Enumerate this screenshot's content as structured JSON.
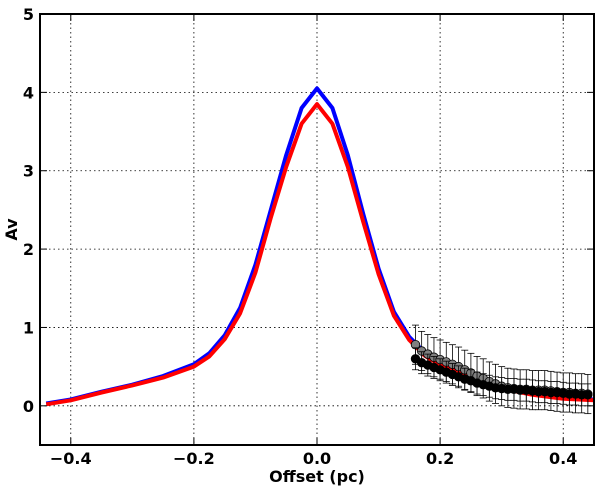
{
  "chart_data": {
    "type": "scatter",
    "title": "",
    "xlabel": "Offset (pc)",
    "ylabel": "Av",
    "xlim": [
      -0.45,
      0.45
    ],
    "ylim": [
      -0.5,
      5.0
    ],
    "xticks": [
      -0.4,
      -0.2,
      0.0,
      0.2,
      0.4
    ],
    "xtick_labels": [
      "−0.4",
      "−0.2",
      "0.0",
      "0.2",
      "0.4"
    ],
    "yticks": [
      0,
      1,
      2,
      3,
      4,
      5
    ],
    "ytick_labels": [
      "0",
      "1",
      "2",
      "3",
      "4",
      "5"
    ],
    "grid": true,
    "series": [
      {
        "name": "model-blue",
        "kind": "line",
        "color": "#0000ff",
        "x": [
          -0.44,
          -0.4,
          -0.35,
          -0.3,
          -0.25,
          -0.2,
          -0.175,
          -0.15,
          -0.125,
          -0.1,
          -0.075,
          -0.05,
          -0.025,
          0.0,
          0.025,
          0.05,
          0.075,
          0.1,
          0.125,
          0.15,
          0.175,
          0.2,
          0.25,
          0.3,
          0.35,
          0.4,
          0.45
        ],
        "y": [
          0.03,
          0.08,
          0.18,
          0.27,
          0.38,
          0.53,
          0.67,
          0.9,
          1.25,
          1.8,
          2.5,
          3.2,
          3.8,
          4.05,
          3.8,
          3.2,
          2.45,
          1.75,
          1.2,
          0.88,
          0.68,
          0.55,
          0.38,
          0.24,
          0.16,
          0.1,
          0.08
        ]
      },
      {
        "name": "model-red",
        "kind": "line",
        "color": "#ff0000",
        "x": [
          -0.44,
          -0.4,
          -0.35,
          -0.3,
          -0.25,
          -0.2,
          -0.175,
          -0.15,
          -0.125,
          -0.1,
          -0.075,
          -0.05,
          -0.025,
          0.0,
          0.025,
          0.05,
          0.075,
          0.1,
          0.125,
          0.15,
          0.175,
          0.2,
          0.25,
          0.3,
          0.35,
          0.4,
          0.45
        ],
        "y": [
          0.02,
          0.07,
          0.17,
          0.26,
          0.36,
          0.5,
          0.63,
          0.85,
          1.18,
          1.7,
          2.4,
          3.05,
          3.6,
          3.85,
          3.6,
          3.05,
          2.35,
          1.68,
          1.15,
          0.84,
          0.64,
          0.52,
          0.36,
          0.22,
          0.14,
          0.09,
          0.07
        ]
      },
      {
        "name": "data-gray",
        "kind": "points",
        "color": "#808080",
        "error": 0.25,
        "x": [
          0.16,
          0.17,
          0.18,
          0.19,
          0.2,
          0.21,
          0.22,
          0.23,
          0.24,
          0.25,
          0.26,
          0.27,
          0.28,
          0.29,
          0.3,
          0.31,
          0.32,
          0.33,
          0.34,
          0.35,
          0.36,
          0.37,
          0.38,
          0.39,
          0.4,
          0.41,
          0.42,
          0.43,
          0.44
        ],
        "y": [
          0.78,
          0.7,
          0.66,
          0.62,
          0.59,
          0.56,
          0.53,
          0.5,
          0.46,
          0.42,
          0.38,
          0.35,
          0.31,
          0.28,
          0.25,
          0.23,
          0.22,
          0.21,
          0.21,
          0.2,
          0.2,
          0.2,
          0.19,
          0.18,
          0.17,
          0.17,
          0.16,
          0.16,
          0.15
        ]
      },
      {
        "name": "data-black",
        "kind": "points",
        "color": "#000000",
        "error": 0.14,
        "x": [
          0.16,
          0.17,
          0.18,
          0.19,
          0.2,
          0.21,
          0.22,
          0.23,
          0.24,
          0.25,
          0.26,
          0.27,
          0.28,
          0.29,
          0.3,
          0.31,
          0.32,
          0.33,
          0.34,
          0.35,
          0.36,
          0.37,
          0.38,
          0.39,
          0.4,
          0.41,
          0.42,
          0.43,
          0.44
        ],
        "y": [
          0.6,
          0.55,
          0.52,
          0.49,
          0.46,
          0.43,
          0.4,
          0.37,
          0.34,
          0.32,
          0.29,
          0.27,
          0.25,
          0.23,
          0.22,
          0.21,
          0.21,
          0.2,
          0.2,
          0.19,
          0.18,
          0.18,
          0.17,
          0.17,
          0.16,
          0.15,
          0.15,
          0.14,
          0.14
        ]
      }
    ]
  }
}
